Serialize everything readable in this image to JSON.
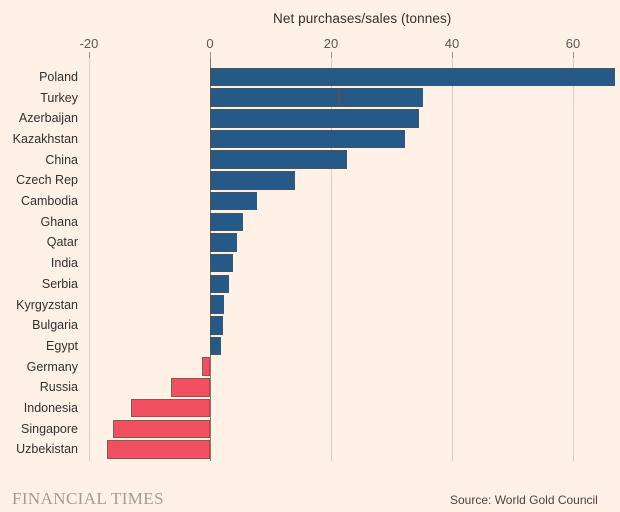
{
  "chart_data": {
    "type": "bar",
    "orientation": "horizontal",
    "title": "Net purchases/sales (tonnes)",
    "categories": [
      "Poland",
      "Turkey",
      "Azerbaijan",
      "Kazakhstan",
      "China",
      "Czech Rep",
      "Cambodia",
      "Ghana",
      "Qatar",
      "India",
      "Serbia",
      "Kyrgyzstan",
      "Bulgaria",
      "Egypt",
      "Germany",
      "Russia",
      "Indonesia",
      "Singapore",
      "Uzbekistan"
    ],
    "values": [
      67,
      35.2,
      34.6,
      32.2,
      22.6,
      14,
      7.8,
      5.5,
      4.4,
      3.8,
      3.1,
      2.3,
      2.1,
      1.8,
      -1.4,
      -6.5,
      -13,
      -16,
      -17
    ],
    "xticks": [
      -20,
      0,
      20,
      40,
      60
    ],
    "xlim": [
      -23.5,
      67.8
    ],
    "grid": "vertical-only",
    "segment_divider": {
      "category": "Turkey",
      "value": 21.3
    },
    "positive_color": "#255a88",
    "negative_color": "#f0505f"
  },
  "footer": {
    "brand": "FINANCIAL TIMES",
    "source": "Source: World Gold Council"
  },
  "colors": {
    "background": "#fff1e5",
    "grid_line": "#dcd0c3",
    "zero_line": "#837c72",
    "bar_border": "#5c5244",
    "label_text": "#33302e",
    "axis_text": "#5d5751",
    "brand_text": "#a59d92",
    "source_text": "#4a4540"
  }
}
